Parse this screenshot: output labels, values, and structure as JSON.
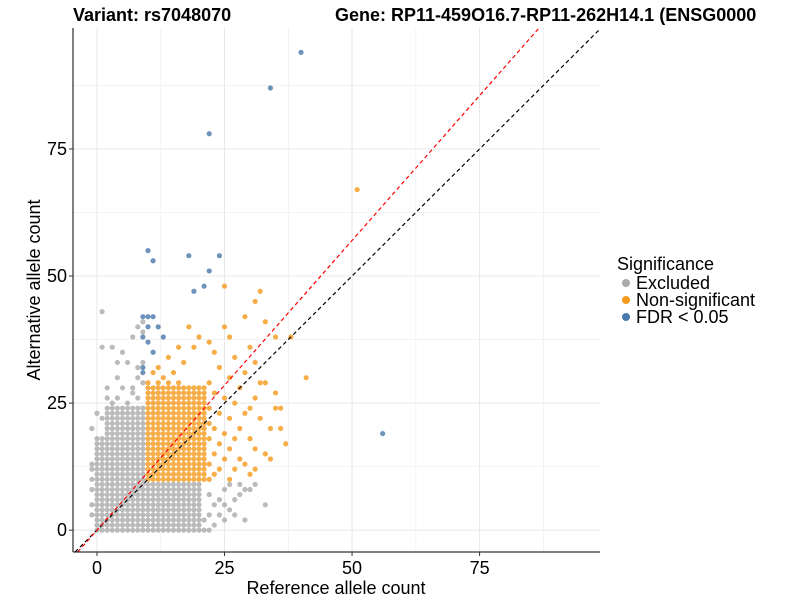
{
  "chart_data": {
    "type": "scatter",
    "title_left": "Variant: rs7048070",
    "title_right": "Gene: RP11-459O16.7-RP11-262H14.1 (ENSG0000",
    "xlabel": "Reference allele count",
    "ylabel": "Alternative allele count",
    "xlim": [
      -4.7,
      98.6
    ],
    "ylim": [
      -4.3,
      98.8
    ],
    "x_ticks": [
      0,
      25,
      50,
      75
    ],
    "y_ticks": [
      0,
      25,
      50,
      75
    ],
    "x_tick_labels": [
      "0",
      "25",
      "50",
      "75"
    ],
    "y_tick_labels": [
      "0",
      "25",
      "50",
      "75"
    ],
    "grid": true,
    "legend": {
      "title": "Significance",
      "position": "right",
      "entries": [
        {
          "label": "Excluded",
          "color": "#AAAAAA"
        },
        {
          "label": "Non-significant",
          "color": "#F59A1B"
        },
        {
          "label": "FDR < 0.05",
          "color": "#4A78AA"
        }
      ]
    },
    "reference_lines": [
      {
        "name": "identity",
        "slope": 1.0,
        "intercept": 0,
        "color": "#000000",
        "style": "dashed"
      },
      {
        "name": "fitted",
        "slope": 1.14,
        "intercept": 0,
        "color": "#FF0000",
        "style": "dashed"
      }
    ],
    "series": [
      {
        "name": "Excluded",
        "color": "#AAAAAA",
        "grid_blocks": [
          {
            "x_from": 0,
            "x_to": 9,
            "y_from": 0,
            "y_to": 13
          },
          {
            "x_from": 0,
            "x_to": 9,
            "y_from": 14,
            "y_to": 18
          },
          {
            "x_from": 10,
            "x_to": 20,
            "y_from": 0,
            "y_to": 9
          },
          {
            "x_from": 2,
            "x_to": 9,
            "y_from": 19,
            "y_to": 24
          }
        ],
        "points": [
          [
            21,
            0
          ],
          [
            22,
            0
          ],
          [
            23,
            1
          ],
          [
            21,
            2
          ],
          [
            22,
            3
          ],
          [
            24,
            3
          ],
          [
            25,
            2
          ],
          [
            26,
            4
          ],
          [
            23,
            5
          ],
          [
            24,
            6
          ],
          [
            25,
            5
          ],
          [
            27,
            6
          ],
          [
            28,
            7
          ],
          [
            29,
            8
          ],
          [
            30,
            8
          ],
          [
            27,
            3
          ],
          [
            33,
            5
          ],
          [
            31,
            9
          ],
          [
            28,
            9
          ],
          [
            26,
            9
          ],
          [
            25,
            8
          ],
          [
            29,
            2
          ],
          [
            22,
            7
          ],
          [
            -1,
            3
          ],
          [
            -1,
            5
          ],
          [
            -1,
            8
          ],
          [
            -1,
            10
          ],
          [
            -1,
            12
          ],
          [
            -1,
            13
          ],
          [
            3,
            25
          ],
          [
            4,
            26
          ],
          [
            6,
            25
          ],
          [
            7,
            27
          ],
          [
            8,
            26
          ],
          [
            5,
            28
          ],
          [
            7,
            28
          ],
          [
            8,
            30
          ],
          [
            9,
            29
          ],
          [
            4,
            30
          ],
          [
            2,
            28
          ],
          [
            8,
            32
          ],
          [
            9,
            33
          ],
          [
            6,
            33
          ],
          [
            5,
            35
          ],
          [
            3,
            36
          ],
          [
            1,
            36
          ],
          [
            7,
            38
          ],
          [
            9,
            39
          ],
          [
            8,
            40
          ],
          [
            9,
            41
          ],
          [
            1,
            43
          ],
          [
            -1,
            20
          ],
          [
            0,
            23
          ],
          [
            1,
            22
          ],
          [
            2,
            26
          ],
          [
            4,
            33
          ]
        ]
      },
      {
        "name": "Non-significant",
        "color": "#F59A1B",
        "grid_blocks": [
          {
            "x_from": 10,
            "x_to": 21,
            "y_from": 10,
            "y_to": 28
          }
        ],
        "points": [
          [
            22,
            10
          ],
          [
            23,
            11
          ],
          [
            24,
            12
          ],
          [
            22,
            13
          ],
          [
            25,
            14
          ],
          [
            23,
            15
          ],
          [
            26,
            16
          ],
          [
            24,
            17
          ],
          [
            22,
            18
          ],
          [
            27,
            18
          ],
          [
            25,
            19
          ],
          [
            23,
            20
          ],
          [
            28,
            20
          ],
          [
            22,
            21
          ],
          [
            26,
            22
          ],
          [
            24,
            23
          ],
          [
            29,
            23
          ],
          [
            22,
            24
          ],
          [
            27,
            25
          ],
          [
            30,
            24
          ],
          [
            25,
            26
          ],
          [
            23,
            27
          ],
          [
            31,
            26
          ],
          [
            28,
            28
          ],
          [
            22,
            29
          ],
          [
            26,
            30
          ],
          [
            33,
            29
          ],
          [
            29,
            31
          ],
          [
            24,
            32
          ],
          [
            31,
            33
          ],
          [
            27,
            34
          ],
          [
            23,
            35
          ],
          [
            35,
            38
          ],
          [
            30,
            36
          ],
          [
            22,
            37
          ],
          [
            26,
            38
          ],
          [
            25,
            40
          ],
          [
            33,
            41
          ],
          [
            29,
            42
          ],
          [
            31,
            45
          ],
          [
            25,
            48
          ],
          [
            32,
            47
          ],
          [
            13,
            30
          ],
          [
            12,
            32
          ],
          [
            15,
            31
          ],
          [
            17,
            33
          ],
          [
            14,
            34
          ],
          [
            19,
            36
          ],
          [
            20,
            38
          ],
          [
            18,
            40
          ],
          [
            16,
            36
          ],
          [
            12,
            29
          ],
          [
            14,
            29
          ],
          [
            10,
            29
          ],
          [
            11,
            31
          ],
          [
            16,
            29
          ],
          [
            35,
            24
          ],
          [
            36,
            24
          ],
          [
            38,
            38
          ],
          [
            41,
            30
          ],
          [
            34,
            20
          ],
          [
            37,
            17
          ],
          [
            35,
            27
          ],
          [
            32,
            29
          ],
          [
            30,
            18
          ],
          [
            31,
            16
          ],
          [
            28,
            14
          ],
          [
            33,
            15
          ],
          [
            29,
            13
          ],
          [
            27,
            12
          ],
          [
            26,
            10
          ],
          [
            30,
            11
          ],
          [
            31,
            12
          ],
          [
            34,
            14
          ],
          [
            36,
            20
          ],
          [
            32,
            22
          ],
          [
            51,
            67
          ]
        ]
      },
      {
        "name": "FDR < 0.05",
        "color": "#4A78AA",
        "grid_blocks": [],
        "points": [
          [
            40,
            94
          ],
          [
            34,
            87
          ],
          [
            22,
            78
          ],
          [
            10,
            55
          ],
          [
            11,
            53
          ],
          [
            18,
            54
          ],
          [
            24,
            54
          ],
          [
            22,
            51
          ],
          [
            19,
            47
          ],
          [
            21,
            48
          ],
          [
            56,
            19
          ],
          [
            9,
            42
          ],
          [
            10,
            42
          ],
          [
            11,
            42
          ],
          [
            10,
            40
          ],
          [
            12,
            40
          ],
          [
            9,
            38
          ],
          [
            10,
            37
          ],
          [
            13,
            38
          ],
          [
            11,
            35
          ],
          [
            9,
            32
          ],
          [
            9,
            31
          ]
        ]
      }
    ]
  }
}
